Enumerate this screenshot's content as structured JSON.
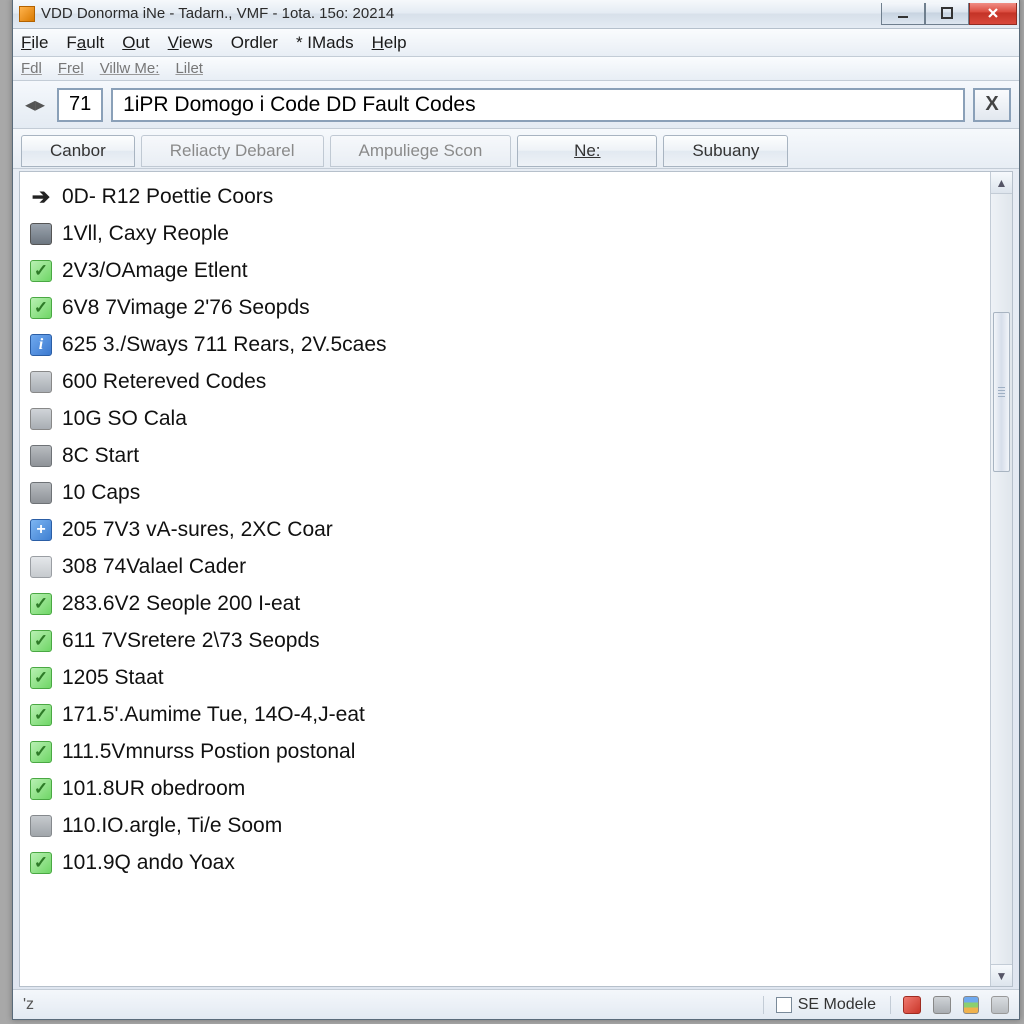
{
  "window": {
    "title": "VDD Donorma iNe - Tadarn., VMF - 1ota. 15o: 20214"
  },
  "menubar": {
    "primary": [
      {
        "label": "File",
        "u": 0
      },
      {
        "label": "Fault",
        "u": 1
      },
      {
        "label": "Out",
        "u": 0
      },
      {
        "label": "Views",
        "u": 0
      },
      {
        "label": "Ordler",
        "u": -1
      },
      {
        "label": "* IMads",
        "u": -1
      },
      {
        "label": "Help",
        "u": 0
      }
    ],
    "secondary": [
      {
        "label": "Fdl"
      },
      {
        "label": "Frel"
      },
      {
        "label": "Villw Me:"
      },
      {
        "label": "Lilet"
      }
    ]
  },
  "address": {
    "number": "71",
    "text": "1iPR Domogo i Code DD Fault Codes",
    "close": "X"
  },
  "tabs": [
    {
      "label": "Canbor",
      "active": true
    },
    {
      "label": "Reliacty Debarel",
      "active": false
    },
    {
      "label": "Ampuliege Scon",
      "active": false
    },
    {
      "label": "Ne:",
      "active": true,
      "ne": true
    },
    {
      "label": "Subuany",
      "active": true
    }
  ],
  "rows": [
    {
      "icon": "arrow",
      "text": "0D- R12 Poettie Coors"
    },
    {
      "icon": "card",
      "text": "1Vll, Caxy Reople"
    },
    {
      "icon": "check",
      "text": "2V3/OAmage Etlent"
    },
    {
      "icon": "check",
      "text": "6V8 7Vimage 2'76 Seopds"
    },
    {
      "icon": "iblue",
      "text": "625 3./Sways 711 Rears, 2V.5caes"
    },
    {
      "icon": "grey",
      "text": "600 Retereved Codes"
    },
    {
      "icon": "grey",
      "text": "10G SO Cala"
    },
    {
      "icon": "folder",
      "text": "8C Start"
    },
    {
      "icon": "folder",
      "text": "10 Caps"
    },
    {
      "icon": "plus",
      "text": "205 7V3 vA-sures, 2XC Coar"
    },
    {
      "icon": "doc",
      "text": "308 74Valael Cader"
    },
    {
      "icon": "check",
      "text": "283.6V2 Seople 200 I-eat"
    },
    {
      "icon": "check",
      "text": "611 7VSretere 2\\73 Seopds"
    },
    {
      "icon": "check",
      "text": "1205 Staat"
    },
    {
      "icon": "check",
      "text": "171.5'.Aumime Tue, 14O-4,J-eat"
    },
    {
      "icon": "check",
      "text": "111.5Vmnurss Postion postonal"
    },
    {
      "icon": "check",
      "text": "101.8UR obedroom"
    },
    {
      "icon": "chip",
      "text": "110.IO.argle, Ti/e Soom"
    },
    {
      "icon": "check",
      "text": "101.9Q ando Yoax"
    }
  ],
  "status": {
    "left": "'z",
    "checkbox_label": "SE Modele"
  },
  "colors": {
    "window_bg": "#e4ebf3",
    "border": "#8aa0b8",
    "text": "#111111",
    "inactive_text": "#8a8a8a",
    "close_red": "#c9362a",
    "check_green": "#6fd666",
    "info_blue": "#3c79cf"
  }
}
